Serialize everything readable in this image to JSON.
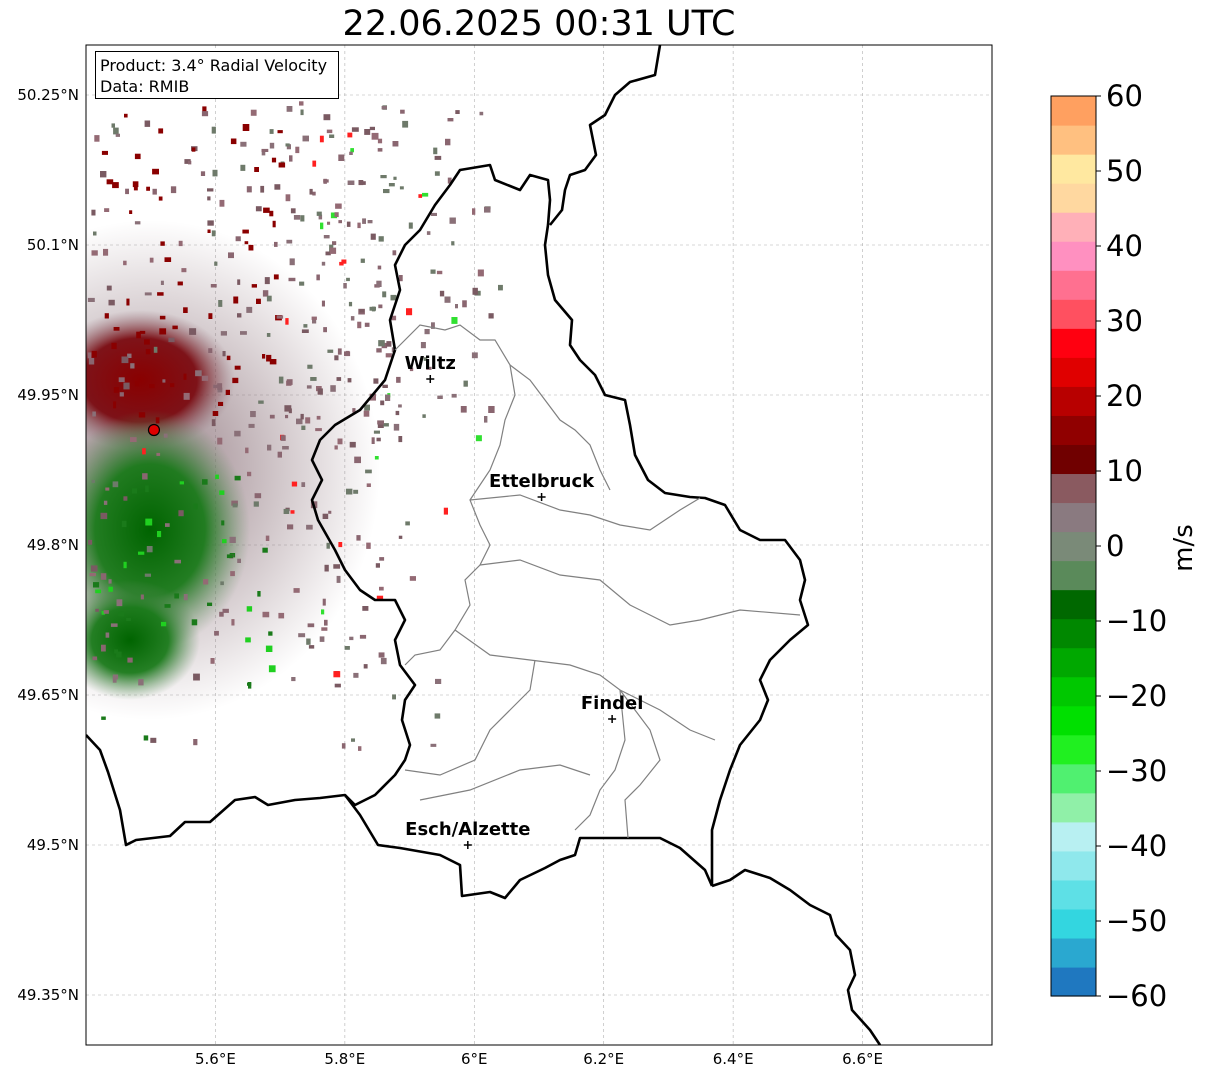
{
  "title": "22.06.2025 00:31 UTC",
  "info": {
    "product_line": "Product: 3.4° Radial Velocity",
    "data_line": "Data: RMIB"
  },
  "map": {
    "lon_range": [
      5.4,
      6.8
    ],
    "lat_range": [
      49.3,
      50.3
    ],
    "lat_ticks": [
      {
        "value": 50.25,
        "label": "50.25°N"
      },
      {
        "value": 50.1,
        "label": "50.1°N"
      },
      {
        "value": 49.95,
        "label": "49.95°N"
      },
      {
        "value": 49.8,
        "label": "49.8°N"
      },
      {
        "value": 49.65,
        "label": "49.65°N"
      },
      {
        "value": 49.5,
        "label": "49.5°N"
      },
      {
        "value": 49.35,
        "label": "49.35°N"
      }
    ],
    "lon_ticks": [
      {
        "value": 5.6,
        "label": "5.6°E"
      },
      {
        "value": 5.8,
        "label": "5.8°E"
      },
      {
        "value": 6.0,
        "label": "6°E"
      },
      {
        "value": 6.2,
        "label": "6.2°E"
      },
      {
        "value": 6.4,
        "label": "6.4°E"
      },
      {
        "value": 6.6,
        "label": "6.6°E"
      }
    ],
    "gridlines": true,
    "radar_site": {
      "lon": 5.505,
      "lat": 49.915,
      "color": "#e00000"
    },
    "cities": [
      {
        "name": "Wiltz",
        "lon": 5.932,
        "lat": 49.966
      },
      {
        "name": "Ettelbruck",
        "lon": 6.104,
        "lat": 49.848
      },
      {
        "name": "Findel",
        "lon": 6.213,
        "lat": 49.626
      },
      {
        "name": "Esch/Alzette",
        "lon": 5.99,
        "lat": 49.5
      }
    ]
  },
  "colorbar": {
    "label": "m/s",
    "min": -60,
    "max": 60,
    "ticks": [
      {
        "value": 60,
        "label": "60"
      },
      {
        "value": 50,
        "label": "50"
      },
      {
        "value": 40,
        "label": "40"
      },
      {
        "value": 30,
        "label": "30"
      },
      {
        "value": 20,
        "label": "20"
      },
      {
        "value": 10,
        "label": "10"
      },
      {
        "value": 0,
        "label": "0"
      },
      {
        "value": -10,
        "label": "−10"
      },
      {
        "value": -20,
        "label": "−20"
      },
      {
        "value": -30,
        "label": "−30"
      },
      {
        "value": -40,
        "label": "−40"
      },
      {
        "value": -50,
        "label": "−50"
      },
      {
        "value": -60,
        "label": "−60"
      }
    ],
    "color_stops": [
      "#1f78c0",
      "#2aa8d0",
      "#33d6e0",
      "#5ee0e6",
      "#8fe8ec",
      "#b8f0f2",
      "#90f0a8",
      "#50f070",
      "#20f020",
      "#00e000",
      "#00c800",
      "#00a800",
      "#008800",
      "#006800",
      "#5a8a5a",
      "#7a8a78",
      "#8a7a80",
      "#8a5a60",
      "#700000",
      "#900000",
      "#b80000",
      "#e00000",
      "#ff0010",
      "#ff5060",
      "#ff7090",
      "#ff90c0",
      "#ffb0b8",
      "#ffd8a0",
      "#ffe8a0",
      "#ffc080",
      "#ffa060"
    ]
  }
}
